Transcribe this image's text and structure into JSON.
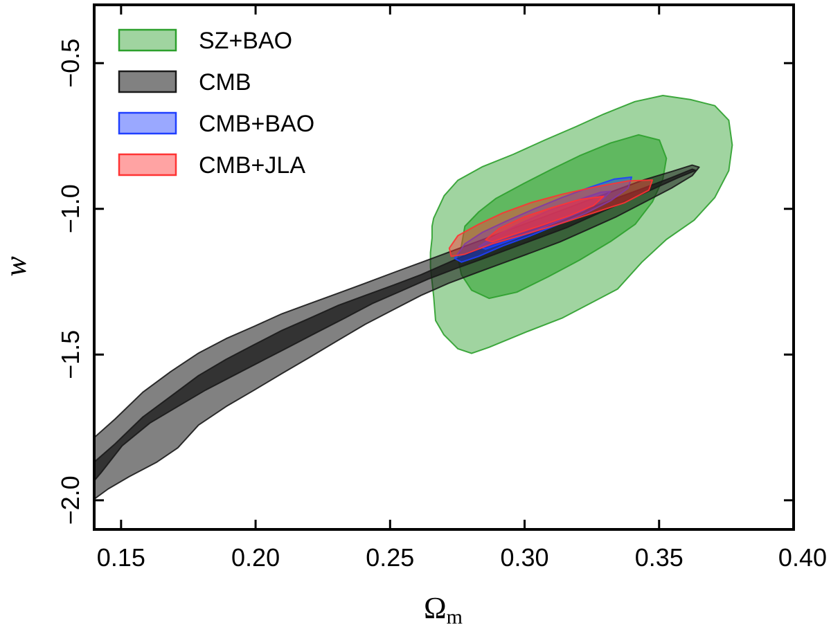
{
  "chart_data": {
    "type": "contour",
    "title": "",
    "xlabel": "Ω",
    "xlabel_subscript": "m",
    "ylabel": "w",
    "xlim": [
      0.14,
      0.4
    ],
    "ylim": [
      -2.1,
      -0.3
    ],
    "xticks": [
      0.15,
      0.2,
      0.25,
      0.3,
      0.35,
      0.4
    ],
    "xtick_labels": [
      "0.15",
      "0.20",
      "0.25",
      "0.30",
      "0.35",
      "0.40"
    ],
    "yticks": [
      -2.0,
      -1.5,
      -1.0,
      -0.5
    ],
    "ytick_labels": [
      "−2.0",
      "−1.5",
      "−1.0",
      "−0.5"
    ],
    "grid": false,
    "legend_position": "top-left",
    "series": [
      {
        "name": "SZ+BAO",
        "color": "#2ca02c",
        "contours": [
          {
            "level": "95%",
            "points": [
              [
                0.2662,
                -1.032
              ],
              [
                0.2701,
                -0.955
              ],
              [
                0.2752,
                -0.902
              ],
              [
                0.2842,
                -0.856
              ],
              [
                0.2958,
                -0.813
              ],
              [
                0.3075,
                -0.764
              ],
              [
                0.3191,
                -0.718
              ],
              [
                0.3294,
                -0.675
              ],
              [
                0.341,
                -0.632
              ],
              [
                0.3514,
                -0.611
              ],
              [
                0.3617,
                -0.625
              ],
              [
                0.3707,
                -0.646
              ],
              [
                0.3759,
                -0.696
              ],
              [
                0.3772,
                -0.781
              ],
              [
                0.3759,
                -0.869
              ],
              [
                0.3707,
                -0.961
              ],
              [
                0.363,
                -1.039
              ],
              [
                0.3527,
                -1.105
              ],
              [
                0.3436,
                -1.183
              ],
              [
                0.3346,
                -1.275
              ],
              [
                0.3243,
                -1.325
              ],
              [
                0.3139,
                -1.375
              ],
              [
                0.301,
                -1.421
              ],
              [
                0.2868,
                -1.475
              ],
              [
                0.2803,
                -1.496
              ],
              [
                0.2752,
                -1.48
              ],
              [
                0.27,
                -1.432
              ],
              [
                0.2669,
                -1.383
              ],
              [
                0.2662,
                -1.3
              ],
              [
                0.2656,
                -1.25
              ],
              [
                0.265,
                -1.2
              ],
              [
                0.265,
                -1.15
              ],
              [
                0.2656,
                -1.1
              ],
              [
                0.2656,
                -1.06
              ]
            ]
          },
          {
            "level": "68%",
            "points": [
              [
                0.2765,
                -1.127
              ],
              [
                0.2778,
                -1.06
              ],
              [
                0.283,
                -1.01
              ],
              [
                0.2894,
                -0.964
              ],
              [
                0.2997,
                -0.913
              ],
              [
                0.3101,
                -0.864
              ],
              [
                0.3204,
                -0.818
              ],
              [
                0.332,
                -0.774
              ],
              [
                0.3424,
                -0.746
              ],
              [
                0.3501,
                -0.764
              ],
              [
                0.3527,
                -0.827
              ],
              [
                0.3514,
                -0.898
              ],
              [
                0.3475,
                -0.976
              ],
              [
                0.3411,
                -1.053
              ],
              [
                0.332,
                -1.112
              ],
              [
                0.3204,
                -1.176
              ],
              [
                0.3088,
                -1.233
              ],
              [
                0.2971,
                -1.286
              ],
              [
                0.2868,
                -1.307
              ],
              [
                0.2803,
                -1.279
              ],
              [
                0.2765,
                -1.226
              ],
              [
                0.2752,
                -1.169
              ]
            ]
          }
        ]
      },
      {
        "name": "CMB",
        "color": "#1a1a1a",
        "contours": [
          {
            "level": "95%",
            "points": [
              [
                0.14,
                -1.785
              ],
              [
                0.1478,
                -1.721
              ],
              [
                0.1581,
                -1.629
              ],
              [
                0.1685,
                -1.558
              ],
              [
                0.1788,
                -1.495
              ],
              [
                0.1891,
                -1.445
              ],
              [
                0.1995,
                -1.403
              ],
              [
                0.2098,
                -1.36
              ],
              [
                0.2202,
                -1.325
              ],
              [
                0.2305,
                -1.29
              ],
              [
                0.2408,
                -1.255
              ],
              [
                0.2512,
                -1.219
              ],
              [
                0.2615,
                -1.184
              ],
              [
                0.2718,
                -1.149
              ],
              [
                0.2822,
                -1.113
              ],
              [
                0.2925,
                -1.078
              ],
              [
                0.3029,
                -1.042
              ],
              [
                0.3132,
                -1.007
              ],
              [
                0.3235,
                -0.971
              ],
              [
                0.3339,
                -0.936
              ],
              [
                0.3442,
                -0.901
              ],
              [
                0.3546,
                -0.872
              ],
              [
                0.3623,
                -0.85
              ],
              [
                0.3649,
                -0.857
              ],
              [
                0.3623,
                -0.886
              ],
              [
                0.3546,
                -0.929
              ],
              [
                0.3442,
                -0.979
              ],
              [
                0.3339,
                -1.028
              ],
              [
                0.3235,
                -1.071
              ],
              [
                0.3132,
                -1.113
              ],
              [
                0.3029,
                -1.149
              ],
              [
                0.2925,
                -1.184
              ],
              [
                0.2822,
                -1.219
              ],
              [
                0.2718,
                -1.255
              ],
              [
                0.2615,
                -1.297
              ],
              [
                0.2512,
                -1.346
              ],
              [
                0.2408,
                -1.396
              ],
              [
                0.2305,
                -1.452
              ],
              [
                0.2202,
                -1.509
              ],
              [
                0.2098,
                -1.565
              ],
              [
                0.1995,
                -1.622
              ],
              [
                0.1891,
                -1.678
              ],
              [
                0.1788,
                -1.742
              ],
              [
                0.1711,
                -1.82
              ],
              [
                0.1633,
                -1.869
              ],
              [
                0.153,
                -1.919
              ],
              [
                0.1452,
                -1.961
              ],
              [
                0.14,
                -1.996
              ]
            ]
          },
          {
            "level": "68%",
            "points": [
              [
                0.14,
                -1.869
              ],
              [
                0.1478,
                -1.806
              ],
              [
                0.1581,
                -1.714
              ],
              [
                0.1685,
                -1.643
              ],
              [
                0.1788,
                -1.572
              ],
              [
                0.1891,
                -1.516
              ],
              [
                0.1995,
                -1.466
              ],
              [
                0.2098,
                -1.417
              ],
              [
                0.2202,
                -1.375
              ],
              [
                0.2305,
                -1.332
              ],
              [
                0.2408,
                -1.297
              ],
              [
                0.2512,
                -1.262
              ],
              [
                0.2615,
                -1.226
              ],
              [
                0.2718,
                -1.184
              ],
              [
                0.2822,
                -1.142
              ],
              [
                0.2925,
                -1.106
              ],
              [
                0.3029,
                -1.071
              ],
              [
                0.3132,
                -1.035
              ],
              [
                0.3235,
                -1.0
              ],
              [
                0.3339,
                -0.964
              ],
              [
                0.3442,
                -0.929
              ],
              [
                0.3546,
                -0.893
              ],
              [
                0.3623,
                -0.864
              ],
              [
                0.3636,
                -0.868
              ],
              [
                0.3571,
                -0.893
              ],
              [
                0.3468,
                -0.936
              ],
              [
                0.3364,
                -0.979
              ],
              [
                0.3261,
                -1.021
              ],
              [
                0.3158,
                -1.064
              ],
              [
                0.3055,
                -1.099
              ],
              [
                0.2951,
                -1.135
              ],
              [
                0.2848,
                -1.17
              ],
              [
                0.2744,
                -1.205
              ],
              [
                0.2641,
                -1.241
              ],
              [
                0.2538,
                -1.283
              ],
              [
                0.2434,
                -1.325
              ],
              [
                0.2331,
                -1.375
              ],
              [
                0.2228,
                -1.424
              ],
              [
                0.2124,
                -1.474
              ],
              [
                0.2021,
                -1.523
              ],
              [
                0.1918,
                -1.572
              ],
              [
                0.1814,
                -1.622
              ],
              [
                0.1711,
                -1.678
              ],
              [
                0.1607,
                -1.735
              ],
              [
                0.1504,
                -1.813
              ],
              [
                0.1426,
                -1.905
              ],
              [
                0.14,
                -1.933
              ]
            ]
          }
        ]
      },
      {
        "name": "CMB+BAO",
        "color": "#1f3fff",
        "contours": [
          {
            "level": "95%",
            "points": [
              [
                0.274,
                -1.17
              ],
              [
                0.2778,
                -1.12
              ],
              [
                0.2842,
                -1.081
              ],
              [
                0.2932,
                -1.042
              ],
              [
                0.3036,
                -1.0
              ],
              [
                0.3139,
                -0.961
              ],
              [
                0.3243,
                -0.926
              ],
              [
                0.3333,
                -0.898
              ],
              [
                0.3398,
                -0.891
              ],
              [
                0.3385,
                -0.929
              ],
              [
                0.332,
                -0.972
              ],
              [
                0.323,
                -1.014
              ],
              [
                0.3126,
                -1.053
              ],
              [
                0.3023,
                -1.092
              ],
              [
                0.2919,
                -1.127
              ],
              [
                0.2829,
                -1.163
              ],
              [
                0.2765,
                -1.183
              ]
            ]
          },
          {
            "level": "68%",
            "points": [
              [
                0.283,
                -1.13
              ],
              [
                0.2894,
                -1.092
              ],
              [
                0.2984,
                -1.05
              ],
              [
                0.3088,
                -1.007
              ],
              [
                0.3191,
                -0.972
              ],
              [
                0.3282,
                -0.943
              ],
              [
                0.332,
                -0.94
              ],
              [
                0.3294,
                -0.964
              ],
              [
                0.3217,
                -1.007
              ],
              [
                0.3126,
                -1.042
              ],
              [
                0.3023,
                -1.081
              ],
              [
                0.2932,
                -1.113
              ],
              [
                0.2855,
                -1.138
              ]
            ]
          }
        ]
      },
      {
        "name": "CMB+JLA",
        "color": "#ff3333",
        "contours": [
          {
            "level": "95%",
            "points": [
              [
                0.272,
                -1.135
              ],
              [
                0.2752,
                -1.092
              ],
              [
                0.2829,
                -1.053
              ],
              [
                0.2919,
                -1.014
              ],
              [
                0.3023,
                -0.979
              ],
              [
                0.3139,
                -0.95
              ],
              [
                0.3256,
                -0.926
              ],
              [
                0.3385,
                -0.904
              ],
              [
                0.3475,
                -0.901
              ],
              [
                0.3462,
                -0.936
              ],
              [
                0.3372,
                -0.979
              ],
              [
                0.3256,
                -1.014
              ],
              [
                0.3139,
                -1.049
              ],
              [
                0.301,
                -1.085
              ],
              [
                0.288,
                -1.12
              ],
              [
                0.2777,
                -1.156
              ],
              [
                0.2727,
                -1.163
              ]
            ]
          },
          {
            "level": "68%",
            "points": [
              [
                0.2855,
                -1.106
              ],
              [
                0.2906,
                -1.067
              ],
              [
                0.2997,
                -1.028
              ],
              [
                0.3101,
                -0.996
              ],
              [
                0.3204,
                -0.968
              ],
              [
                0.3294,
                -0.957
              ],
              [
                0.3256,
                -0.989
              ],
              [
                0.3165,
                -1.024
              ],
              [
                0.3062,
                -1.057
              ],
              [
                0.2958,
                -1.088
              ],
              [
                0.288,
                -1.113
              ]
            ]
          }
        ]
      }
    ]
  }
}
